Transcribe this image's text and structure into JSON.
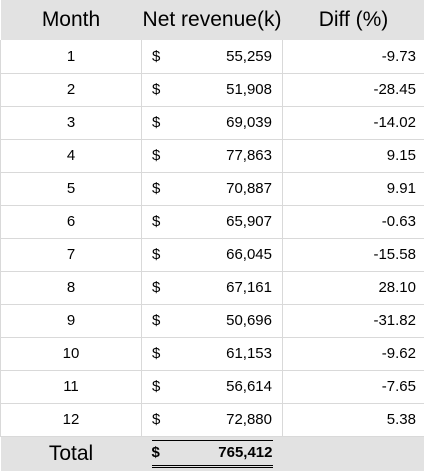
{
  "table": {
    "headers": {
      "month": "Month",
      "revenue": "Net revenue(k)",
      "diff": "Diff (%)"
    },
    "currency_symbol": "$",
    "rows": [
      {
        "month": "1",
        "revenue": "55,259",
        "diff": "-9.73"
      },
      {
        "month": "2",
        "revenue": "51,908",
        "diff": "-28.45"
      },
      {
        "month": "3",
        "revenue": "69,039",
        "diff": "-14.02"
      },
      {
        "month": "4",
        "revenue": "77,863",
        "diff": "9.15"
      },
      {
        "month": "5",
        "revenue": "70,887",
        "diff": "9.91"
      },
      {
        "month": "6",
        "revenue": "65,907",
        "diff": "-0.63"
      },
      {
        "month": "7",
        "revenue": "66,045",
        "diff": "-15.58"
      },
      {
        "month": "8",
        "revenue": "67,161",
        "diff": "28.10"
      },
      {
        "month": "9",
        "revenue": "50,696",
        "diff": "-31.82"
      },
      {
        "month": "10",
        "revenue": "61,153",
        "diff": "-9.62"
      },
      {
        "month": "11",
        "revenue": "56,614",
        "diff": "-7.65"
      },
      {
        "month": "12",
        "revenue": "72,880",
        "diff": "5.38"
      }
    ],
    "total": {
      "label": "Total",
      "revenue": "765,412"
    }
  },
  "colors": {
    "header_background": "#e2e2e2",
    "grid_line": "#d9d9d9",
    "text": "#000000"
  }
}
